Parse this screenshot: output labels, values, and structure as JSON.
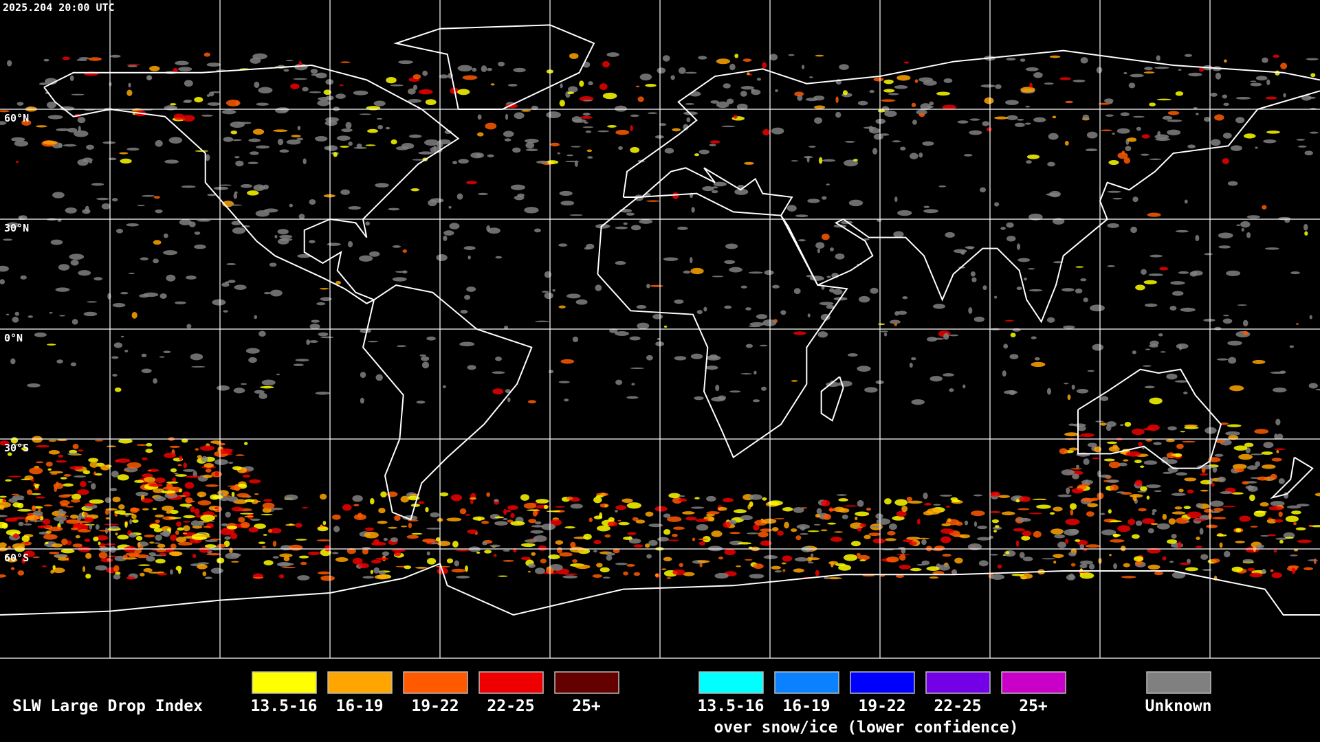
{
  "timestamp": "2025.204 20:00 UTC",
  "latitude_labels": [
    "60°N",
    "30°N",
    "0°N",
    "30°S",
    "60°S"
  ],
  "legend": {
    "title": "SLW Large Drop Index",
    "liquid": [
      {
        "label": "13.5-16",
        "color": "#ffff00"
      },
      {
        "label": "16-19",
        "color": "#ffa500"
      },
      {
        "label": "19-22",
        "color": "#ff5a00"
      },
      {
        "label": "22-25",
        "color": "#ee0000"
      },
      {
        "label": "25+",
        "color": "#640000"
      }
    ],
    "snow_ice": [
      {
        "label": "13.5-16",
        "color": "#00ffff"
      },
      {
        "label": "16-19",
        "color": "#0a82ff"
      },
      {
        "label": "19-22",
        "color": "#0000ff"
      },
      {
        "label": "22-25",
        "color": "#7300e6"
      },
      {
        "label": "25+",
        "color": "#c800c8"
      }
    ],
    "snow_ice_caption": "over snow/ice (lower confidence)",
    "unknown": {
      "label": "Unknown",
      "color": "#808080"
    }
  }
}
